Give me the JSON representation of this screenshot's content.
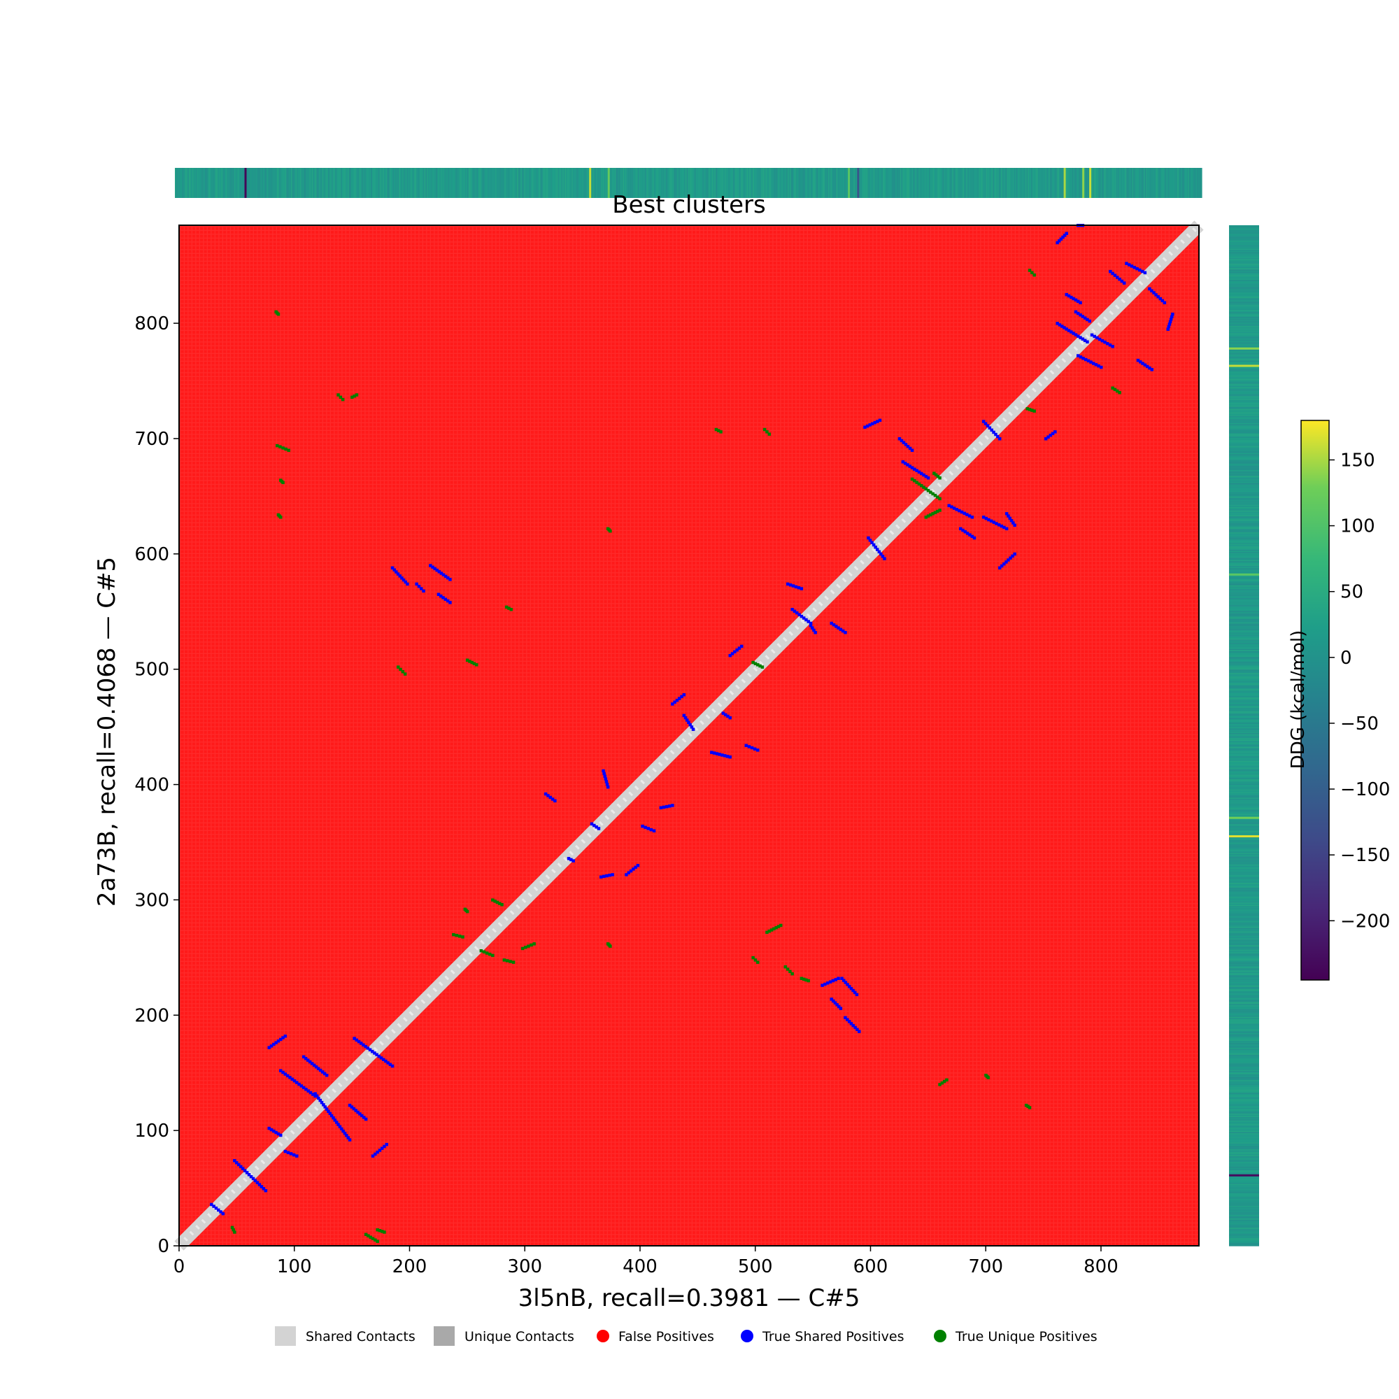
{
  "chart_data": {
    "type": "heatmap",
    "title": "Best clusters",
    "xlabel": "3l5nB, recall=0.3981 — C#5",
    "ylabel": "2a73B, recall=0.4068 — C#5",
    "xlim": [
      0,
      885
    ],
    "ylim": [
      0,
      885
    ],
    "xticks": [
      0,
      100,
      200,
      300,
      400,
      500,
      600,
      700,
      800
    ],
    "yticks": [
      0,
      100,
      200,
      300,
      400,
      500,
      600,
      700,
      800
    ],
    "grid": false,
    "background_class": "False Positives",
    "legend": {
      "placement": "bottom-center",
      "items": [
        {
          "label": "Shared Contacts",
          "marker": "square",
          "color": "#d3d3d3"
        },
        {
          "label": "Unique Contacts",
          "marker": "square",
          "color": "#a9a9a9"
        },
        {
          "label": "False Positives",
          "marker": "circle",
          "color": "#ff0000"
        },
        {
          "label": "True Shared Positives",
          "marker": "circle",
          "color": "#0000ff"
        },
        {
          "label": "True Unique Positives",
          "marker": "circle",
          "color": "#008000"
        }
      ]
    },
    "colorbar": {
      "label": "DDG (kcal/mol)",
      "colormap": "viridis",
      "range": [
        -245,
        180
      ],
      "ticks": [
        150,
        100,
        50,
        0,
        -50,
        -100,
        -150,
        -200
      ],
      "tick_labels": [
        "150",
        "100",
        "50",
        "0",
        "−50",
        "−100",
        "−150",
        "−200"
      ]
    },
    "diagonal_band": {
      "category": "Shared Contacts",
      "from": [
        0,
        0
      ],
      "to": [
        885,
        885
      ],
      "width": 8
    },
    "true_shared_segments": [
      [
        [
          28,
          36
        ],
        [
          38,
          28
        ]
      ],
      [
        [
          48,
          74
        ],
        [
          75,
          48
        ]
      ],
      [
        [
          78,
          102
        ],
        [
          88,
          96
        ]
      ],
      [
        [
          88,
          152
        ],
        [
          118,
          130
        ]
      ],
      [
        [
          92,
          182
        ],
        [
          78,
          172
        ]
      ],
      [
        [
          108,
          164
        ],
        [
          128,
          148
        ]
      ],
      [
        [
          118,
          132
        ],
        [
          148,
          92
        ]
      ],
      [
        [
          148,
          122
        ],
        [
          162,
          110
        ]
      ],
      [
        [
          152,
          180
        ],
        [
          185,
          156
        ]
      ],
      [
        [
          168,
          78
        ],
        [
          180,
          88
        ]
      ],
      [
        [
          92,
          82
        ],
        [
          102,
          78
        ]
      ],
      [
        [
          185,
          588
        ],
        [
          198,
          574
        ]
      ],
      [
        [
          206,
          574
        ],
        [
          212,
          568
        ]
      ],
      [
        [
          218,
          590
        ],
        [
          235,
          578
        ]
      ],
      [
        [
          225,
          565
        ],
        [
          235,
          558
        ]
      ],
      [
        [
          318,
          392
        ],
        [
          326,
          386
        ]
      ],
      [
        [
          338,
          336
        ],
        [
          342,
          334
        ]
      ],
      [
        [
          358,
          366
        ],
        [
          364,
          362
        ]
      ],
      [
        [
          368,
          412
        ],
        [
          372,
          398
        ]
      ],
      [
        [
          366,
          320
        ],
        [
          376,
          322
        ]
      ],
      [
        [
          388,
          322
        ],
        [
          398,
          330
        ]
      ],
      [
        [
          402,
          364
        ],
        [
          412,
          360
        ]
      ],
      [
        [
          418,
          380
        ],
        [
          428,
          382
        ]
      ],
      [
        [
          428,
          470
        ],
        [
          438,
          478
        ]
      ],
      [
        [
          438,
          460
        ],
        [
          446,
          448
        ]
      ],
      [
        [
          462,
          428
        ],
        [
          478,
          424
        ]
      ],
      [
        [
          472,
          462
        ],
        [
          478,
          458
        ]
      ],
      [
        [
          478,
          512
        ],
        [
          488,
          520
        ]
      ],
      [
        [
          492,
          434
        ],
        [
          502,
          430
        ]
      ],
      [
        [
          528,
          574
        ],
        [
          540,
          570
        ]
      ],
      [
        [
          532,
          552
        ],
        [
          548,
          540
        ]
      ],
      [
        [
          548,
          538
        ],
        [
          552,
          532
        ]
      ],
      [
        [
          566,
          540
        ],
        [
          578,
          532
        ]
      ],
      [
        [
          598,
          614
        ],
        [
          612,
          596
        ]
      ],
      [
        [
          595,
          710
        ],
        [
          608,
          716
        ]
      ],
      [
        [
          625,
          700
        ],
        [
          636,
          690
        ]
      ],
      [
        [
          628,
          680
        ],
        [
          650,
          666
        ]
      ],
      [
        [
          668,
          642
        ],
        [
          688,
          632
        ]
      ],
      [
        [
          678,
          622
        ],
        [
          690,
          614
        ]
      ],
      [
        [
          698,
          632
        ],
        [
          718,
          622
        ]
      ],
      [
        [
          698,
          715
        ],
        [
          712,
          700
        ]
      ],
      [
        [
          712,
          588
        ],
        [
          725,
          600
        ]
      ],
      [
        [
          718,
          635
        ],
        [
          725,
          625
        ]
      ],
      [
        [
          762,
          800
        ],
        [
          788,
          784
        ]
      ],
      [
        [
          770,
          825
        ],
        [
          782,
          818
        ]
      ],
      [
        [
          778,
          810
        ],
        [
          790,
          802
        ]
      ],
      [
        [
          780,
          772
        ],
        [
          800,
          762
        ]
      ],
      [
        [
          792,
          790
        ],
        [
          810,
          780
        ]
      ],
      [
        [
          808,
          845
        ],
        [
          820,
          835
        ]
      ],
      [
        [
          822,
          852
        ],
        [
          838,
          844
        ]
      ],
      [
        [
          832,
          768
        ],
        [
          844,
          760
        ]
      ],
      [
        [
          842,
          830
        ],
        [
          855,
          818
        ]
      ],
      [
        [
          858,
          795
        ],
        [
          862,
          808
        ]
      ],
      [
        [
          752,
          700
        ],
        [
          760,
          706
        ]
      ],
      [
        [
          762,
          870
        ],
        [
          770,
          878
        ]
      ],
      [
        [
          780,
          885
        ],
        [
          784,
          885
        ]
      ],
      [
        [
          558,
          226
        ],
        [
          572,
          232
        ]
      ],
      [
        [
          566,
          214
        ],
        [
          574,
          206
        ]
      ],
      [
        [
          575,
          232
        ],
        [
          588,
          218
        ]
      ],
      [
        [
          578,
          198
        ],
        [
          590,
          186
        ]
      ]
    ],
    "true_unique_segments": [
      [
        [
          85,
          694
        ],
        [
          95,
          690
        ]
      ],
      [
        [
          88,
          664
        ],
        [
          90,
          662
        ]
      ],
      [
        [
          86,
          634
        ],
        [
          88,
          632
        ]
      ],
      [
        [
          190,
          502
        ],
        [
          196,
          496
        ]
      ],
      [
        [
          162,
          10
        ],
        [
          172,
          4
        ]
      ],
      [
        [
          172,
          14
        ],
        [
          178,
          12
        ]
      ],
      [
        [
          46,
          16
        ],
        [
          48,
          12
        ]
      ],
      [
        [
          238,
          270
        ],
        [
          246,
          268
        ]
      ],
      [
        [
          248,
          292
        ],
        [
          250,
          290
        ]
      ],
      [
        [
          262,
          256
        ],
        [
          272,
          252
        ]
      ],
      [
        [
          282,
          248
        ],
        [
          290,
          246
        ]
      ],
      [
        [
          298,
          258
        ],
        [
          308,
          262
        ]
      ],
      [
        [
          250,
          508
        ],
        [
          258,
          504
        ]
      ],
      [
        [
          284,
          554
        ],
        [
          288,
          552
        ]
      ],
      [
        [
          372,
          622
        ],
        [
          374,
          620
        ]
      ],
      [
        [
          272,
          300
        ],
        [
          280,
          296
        ]
      ],
      [
        [
          498,
          250
        ],
        [
          502,
          246
        ]
      ],
      [
        [
          510,
          272
        ],
        [
          522,
          278
        ]
      ],
      [
        [
          526,
          242
        ],
        [
          532,
          236
        ]
      ],
      [
        [
          540,
          232
        ],
        [
          546,
          230
        ]
      ],
      [
        [
          636,
          665
        ],
        [
          660,
          648
        ]
      ],
      [
        [
          655,
          670
        ],
        [
          660,
          666
        ]
      ],
      [
        [
          648,
          632
        ],
        [
          660,
          638
        ]
      ],
      [
        [
          738,
          846
        ],
        [
          742,
          842
        ]
      ],
      [
        [
          736,
          726
        ],
        [
          742,
          724
        ]
      ],
      [
        [
          810,
          744
        ],
        [
          816,
          740
        ]
      ],
      [
        [
          660,
          140
        ],
        [
          666,
          144
        ]
      ],
      [
        [
          700,
          148
        ],
        [
          702,
          146
        ]
      ],
      [
        [
          735,
          122
        ],
        [
          738,
          120
        ]
      ],
      [
        [
          508,
          708
        ],
        [
          512,
          704
        ]
      ],
      [
        [
          466,
          708
        ],
        [
          470,
          706
        ]
      ],
      [
        [
          498,
          506
        ],
        [
          506,
          502
        ]
      ],
      [
        [
          138,
          738
        ],
        [
          142,
          734
        ]
      ],
      [
        [
          150,
          736
        ],
        [
          154,
          738
        ]
      ],
      [
        [
          84,
          810
        ],
        [
          86,
          808
        ]
      ],
      [
        [
          372,
          262
        ],
        [
          374,
          260
        ]
      ]
    ]
  },
  "marginal_x": {
    "colormap": "viridis",
    "notable_positions": [
      {
        "residue": 60,
        "value": -240
      },
      {
        "residue": 357,
        "value": 160
      },
      {
        "residue": 373,
        "value": 120
      },
      {
        "residue": 580,
        "value": 110
      },
      {
        "residue": 766,
        "value": 150
      },
      {
        "residue": 782,
        "value": 140
      },
      {
        "residue": 788,
        "value": 160
      },
      {
        "residue": 588,
        "value": -120
      }
    ]
  },
  "marginal_y": {
    "colormap": "viridis",
    "notable_positions": [
      {
        "residue": 62,
        "value": -230
      },
      {
        "residue": 356,
        "value": 170
      },
      {
        "residue": 372,
        "value": 130
      },
      {
        "residue": 764,
        "value": 160
      },
      {
        "residue": 779,
        "value": 140
      },
      {
        "residue": 583,
        "value": 110
      }
    ]
  }
}
